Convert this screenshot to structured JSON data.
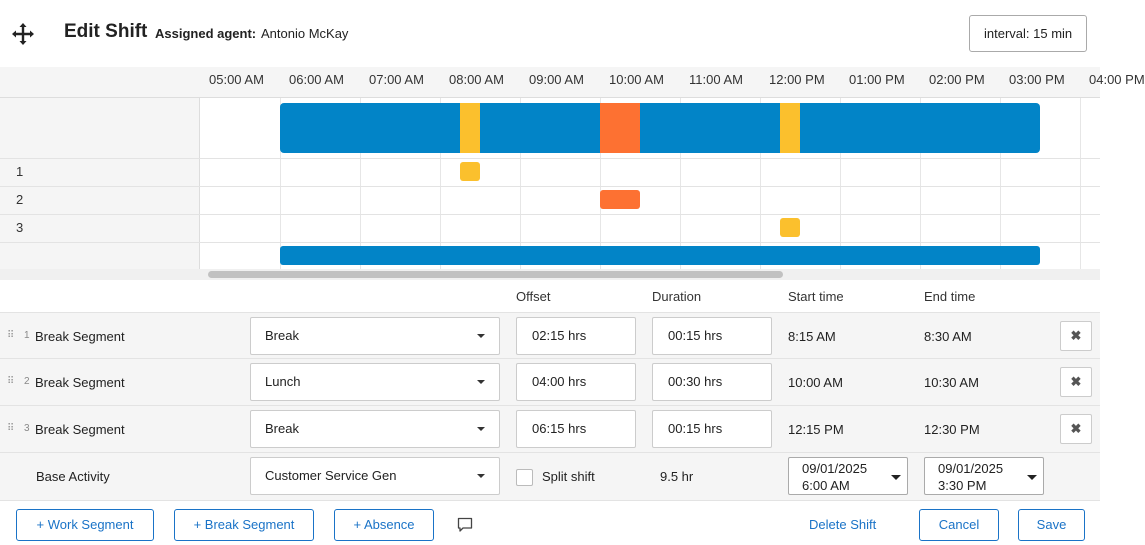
{
  "header": {
    "title": "Edit Shift",
    "assigned_label": "Assigned agent:",
    "assigned_value": "Antonio McKay",
    "interval": "interval: 15 min",
    "move_icon": "move-arrows-icon"
  },
  "timeline": {
    "hours": [
      "05:00 AM",
      "06:00 AM",
      "07:00 AM",
      "08:00 AM",
      "09:00 AM",
      "10:00 AM",
      "11:00 AM",
      "12:00 PM",
      "01:00 PM",
      "02:00 PM",
      "03:00 PM",
      "04:00 PM"
    ],
    "row_numbers": [
      "1",
      "2",
      "3"
    ],
    "colors": {
      "work": "#0284c7",
      "break": "#fbc02d",
      "lunch": "#fd7132"
    }
  },
  "table": {
    "headers": {
      "offset": "Offset",
      "duration": "Duration",
      "start": "Start time",
      "end": "End time"
    },
    "rows": [
      {
        "index": "1",
        "name": "Break Segment",
        "activity": "Break",
        "offset": "02:15 hrs",
        "duration": "00:15 hrs",
        "start": "8:15 AM",
        "end": "8:30 AM"
      },
      {
        "index": "2",
        "name": "Break Segment",
        "activity": "Lunch",
        "offset": "04:00 hrs",
        "duration": "00:30 hrs",
        "start": "10:00 AM",
        "end": "10:30 AM"
      },
      {
        "index": "3",
        "name": "Break Segment",
        "activity": "Break",
        "offset": "06:15 hrs",
        "duration": "00:15 hrs",
        "start": "12:15 PM",
        "end": "12:30 PM"
      }
    ],
    "base": {
      "name": "Base Activity",
      "activity": "Customer Service Gen",
      "split_label": "Split shift",
      "total": "9.5 hr",
      "start_date": "09/01/2025",
      "start_time": "6:00 AM",
      "end_date": "09/01/2025",
      "end_time": "3:30 PM"
    }
  },
  "footer": {
    "add_work": "+ Work Segment",
    "add_break": "+ Break Segment",
    "add_absence": "+ Absence",
    "delete": "Delete Shift",
    "cancel": "Cancel",
    "save": "Save"
  }
}
